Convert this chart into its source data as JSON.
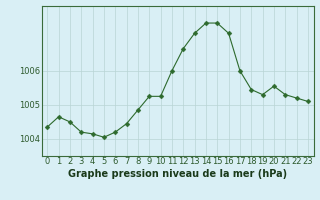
{
  "x": [
    0,
    1,
    2,
    3,
    4,
    5,
    6,
    7,
    8,
    9,
    10,
    11,
    12,
    13,
    14,
    15,
    16,
    17,
    18,
    19,
    20,
    21,
    22,
    23
  ],
  "y": [
    1004.35,
    1004.65,
    1004.5,
    1004.2,
    1004.15,
    1004.05,
    1004.2,
    1004.45,
    1004.85,
    1005.25,
    1005.25,
    1006.0,
    1006.65,
    1007.1,
    1007.4,
    1007.4,
    1007.1,
    1006.0,
    1005.45,
    1005.3,
    1005.55,
    1005.3,
    1005.2,
    1005.1
  ],
  "line_color": "#2d6a2d",
  "marker": "D",
  "marker_size": 2.5,
  "background_color": "#d9eff5",
  "grid_color": "#b8d4d4",
  "title": "Graphe pression niveau de la mer (hPa)",
  "ylim_min": 1003.5,
  "ylim_max": 1007.9,
  "yticks": [
    1004,
    1005,
    1006
  ],
  "xtick_labels": [
    "0",
    "1",
    "2",
    "3",
    "4",
    "5",
    "6",
    "7",
    "8",
    "9",
    "10",
    "11",
    "12",
    "13",
    "14",
    "15",
    "16",
    "17",
    "18",
    "19",
    "20",
    "21",
    "22",
    "23"
  ],
  "tick_fontsize": 6,
  "title_fontsize": 7
}
